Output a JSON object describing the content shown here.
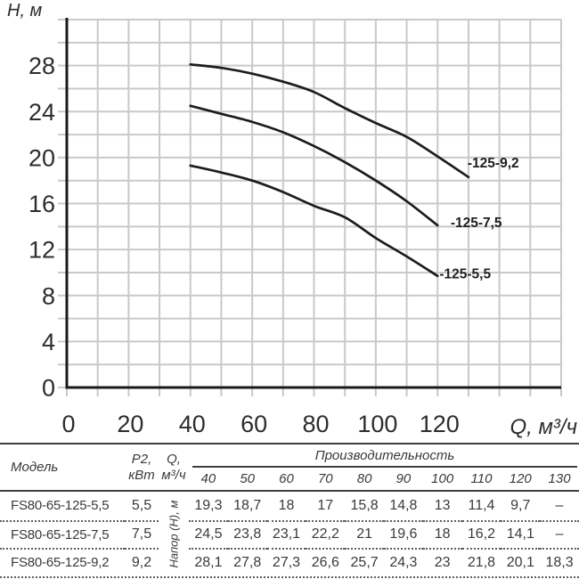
{
  "chart_data": {
    "type": "line",
    "title": "",
    "ylabel": "H, м",
    "xlabel": "Q, м³/ч",
    "xlim": [
      0,
      160
    ],
    "ylim": [
      0,
      32
    ],
    "x_ticks": [
      0,
      20,
      40,
      60,
      80,
      100,
      120
    ],
    "y_ticks": [
      0,
      4,
      8,
      12,
      16,
      20,
      24,
      28
    ],
    "grid_step_x": 10,
    "grid_step_y": 2,
    "grid": true,
    "legend_position": "end-of-curve",
    "grid_color": "#c9c9c9",
    "axis_color": "#1a1a1a",
    "curve_color": "#1c1c1c",
    "series": [
      {
        "name": "-125-9,2",
        "x": [
          40,
          50,
          60,
          70,
          80,
          90,
          100,
          110,
          120,
          130
        ],
        "y": [
          28.1,
          27.8,
          27.3,
          26.6,
          25.7,
          24.3,
          23,
          21.8,
          20.1,
          18.3
        ],
        "label_at": [
          129.7,
          19.15
        ]
      },
      {
        "name": "-125-7,5",
        "x": [
          40,
          50,
          60,
          70,
          80,
          90,
          100,
          110,
          120
        ],
        "y": [
          24.5,
          23.8,
          23.1,
          22.2,
          21,
          19.6,
          18,
          16.2,
          14.1
        ],
        "label_at": [
          124.2,
          13.95
        ]
      },
      {
        "name": "-125-5,5",
        "x": [
          40,
          50,
          60,
          70,
          80,
          90,
          100,
          110,
          120
        ],
        "y": [
          19.3,
          18.7,
          18,
          17,
          15.8,
          14.8,
          13,
          11.4,
          9.7
        ],
        "label_at": [
          120.6,
          9.5
        ]
      }
    ]
  },
  "table": {
    "col_model": "Модель",
    "col_p2": [
      "P2,",
      "кВт"
    ],
    "col_q": [
      "Q,",
      "м³/ч"
    ],
    "group_header": "Производительность",
    "flow_cols": [
      "40",
      "50",
      "60",
      "70",
      "80",
      "90",
      "100",
      "110",
      "120",
      "130"
    ],
    "rotated_label": "Напор (H), м",
    "rows": [
      {
        "model": "FS80-65-125-5,5",
        "p2": "5,5",
        "values": [
          "19,3",
          "18,7",
          "18",
          "17",
          "15,8",
          "14,8",
          "13",
          "11,4",
          "9,7",
          "–"
        ]
      },
      {
        "model": "FS80-65-125-7,5",
        "p2": "7,5",
        "values": [
          "24,5",
          "23,8",
          "23,1",
          "22,2",
          "21",
          "19,6",
          "18",
          "16,2",
          "14,1",
          "–"
        ]
      },
      {
        "model": "FS80-65-125-9,2",
        "p2": "9,2",
        "values": [
          "28,1",
          "27,8",
          "27,3",
          "26,6",
          "25,7",
          "24,3",
          "23",
          "21,8",
          "20,1",
          "18,3"
        ]
      }
    ]
  }
}
